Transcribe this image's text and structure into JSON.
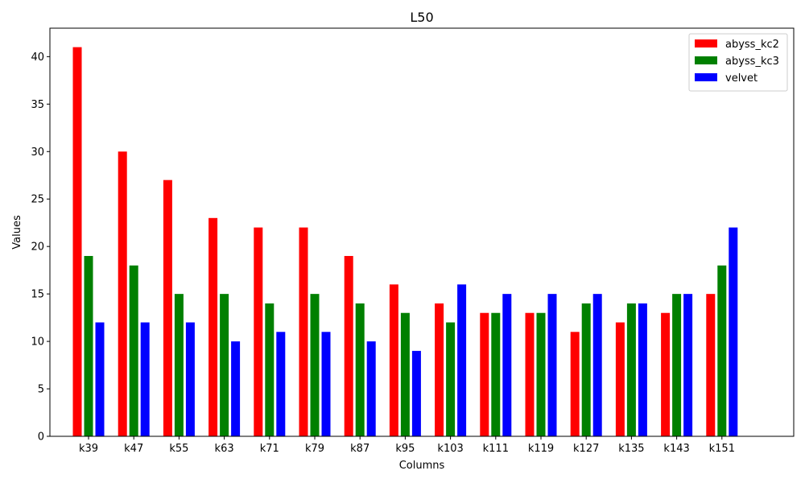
{
  "chart_data": {
    "type": "bar",
    "title": "L50",
    "xlabel": "Columns",
    "ylabel": "Values",
    "ylim": [
      0,
      43
    ],
    "yticks": [
      0,
      5,
      10,
      15,
      20,
      25,
      30,
      35,
      40
    ],
    "grid": false,
    "legend_position": "top-right",
    "categories": [
      "k39",
      "k47",
      "k55",
      "k63",
      "k71",
      "k79",
      "k87",
      "k95",
      "k103",
      "k111",
      "k119",
      "k127",
      "k135",
      "k143",
      "k151"
    ],
    "series": [
      {
        "name": "abyss_kc2",
        "color": "#ff0000",
        "values": [
          41,
          30,
          27,
          23,
          22,
          22,
          19,
          16,
          14,
          13,
          13,
          11,
          12,
          13,
          15
        ]
      },
      {
        "name": "abyss_kc3",
        "color": "#008000",
        "values": [
          19,
          18,
          15,
          15,
          14,
          15,
          14,
          13,
          12,
          13,
          13,
          14,
          14,
          15,
          18
        ]
      },
      {
        "name": "velvet",
        "color": "#0000ff",
        "values": [
          12,
          12,
          12,
          10,
          11,
          11,
          10,
          9,
          16,
          15,
          15,
          15,
          14,
          15,
          22
        ]
      }
    ]
  }
}
